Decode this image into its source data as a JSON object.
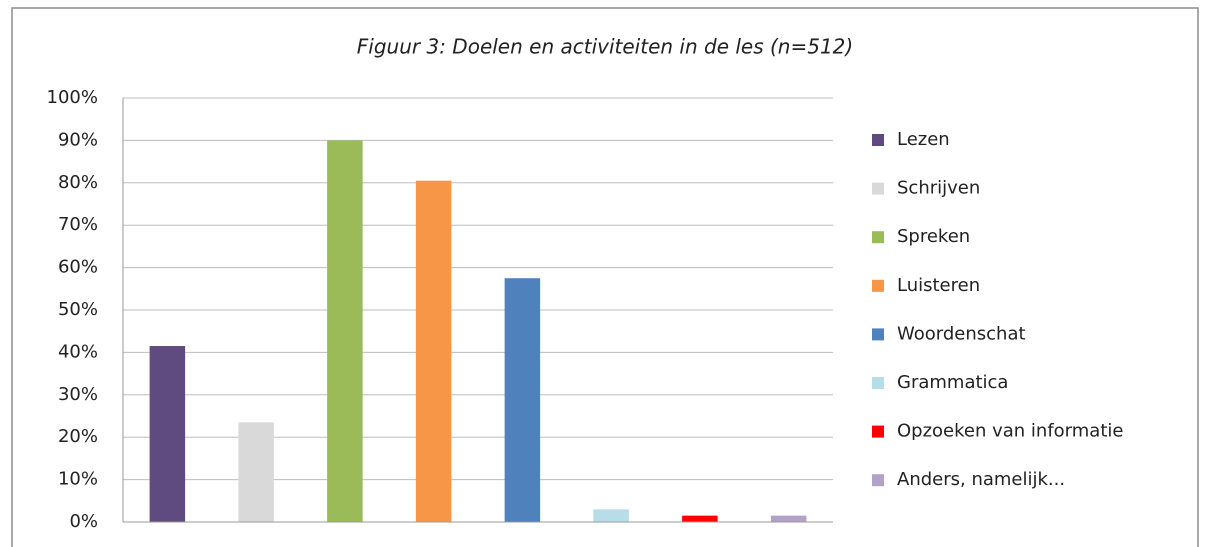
{
  "chart_data": {
    "type": "bar",
    "title": "Figuur 3: Doelen en activiteiten in de les (n=512)",
    "categories": [
      null
    ],
    "series": [
      {
        "name": "Lezen",
        "color": "#5f4b7f",
        "values": [
          41.5
        ]
      },
      {
        "name": "Schrijven",
        "color": "#d9d9d9",
        "values": [
          23.5
        ]
      },
      {
        "name": "Spreken",
        "color": "#9bbb59",
        "values": [
          90
        ]
      },
      {
        "name": "Luisteren",
        "color": "#f79646",
        "values": [
          80.5
        ]
      },
      {
        "name": "Woordenschat",
        "color": "#4f81bd",
        "values": [
          57.5
        ]
      },
      {
        "name": "Grammatica",
        "color": "#b7dde8",
        "values": [
          3
        ]
      },
      {
        "name": "Opzoeken van informatie",
        "color": "#ff0000",
        "values": [
          1.5
        ]
      },
      {
        "name": "Anders, namelijk...",
        "color": "#b3a2c7",
        "values": [
          1.5
        ]
      }
    ],
    "ylim": [
      0,
      100
    ],
    "yticks": [
      {
        "value": 0,
        "label": "0%"
      },
      {
        "value": 10,
        "label": "10%"
      },
      {
        "value": 20,
        "label": "20%"
      },
      {
        "value": 30,
        "label": "30%"
      },
      {
        "value": 40,
        "label": "40%"
      },
      {
        "value": 50,
        "label": "50%"
      },
      {
        "value": 60,
        "label": "60%"
      },
      {
        "value": 70,
        "label": "70%"
      },
      {
        "value": 80,
        "label": "80%"
      },
      {
        "value": 90,
        "label": "90%"
      },
      {
        "value": 100,
        "label": "100%"
      }
    ],
    "grid": true,
    "legend": "right"
  }
}
